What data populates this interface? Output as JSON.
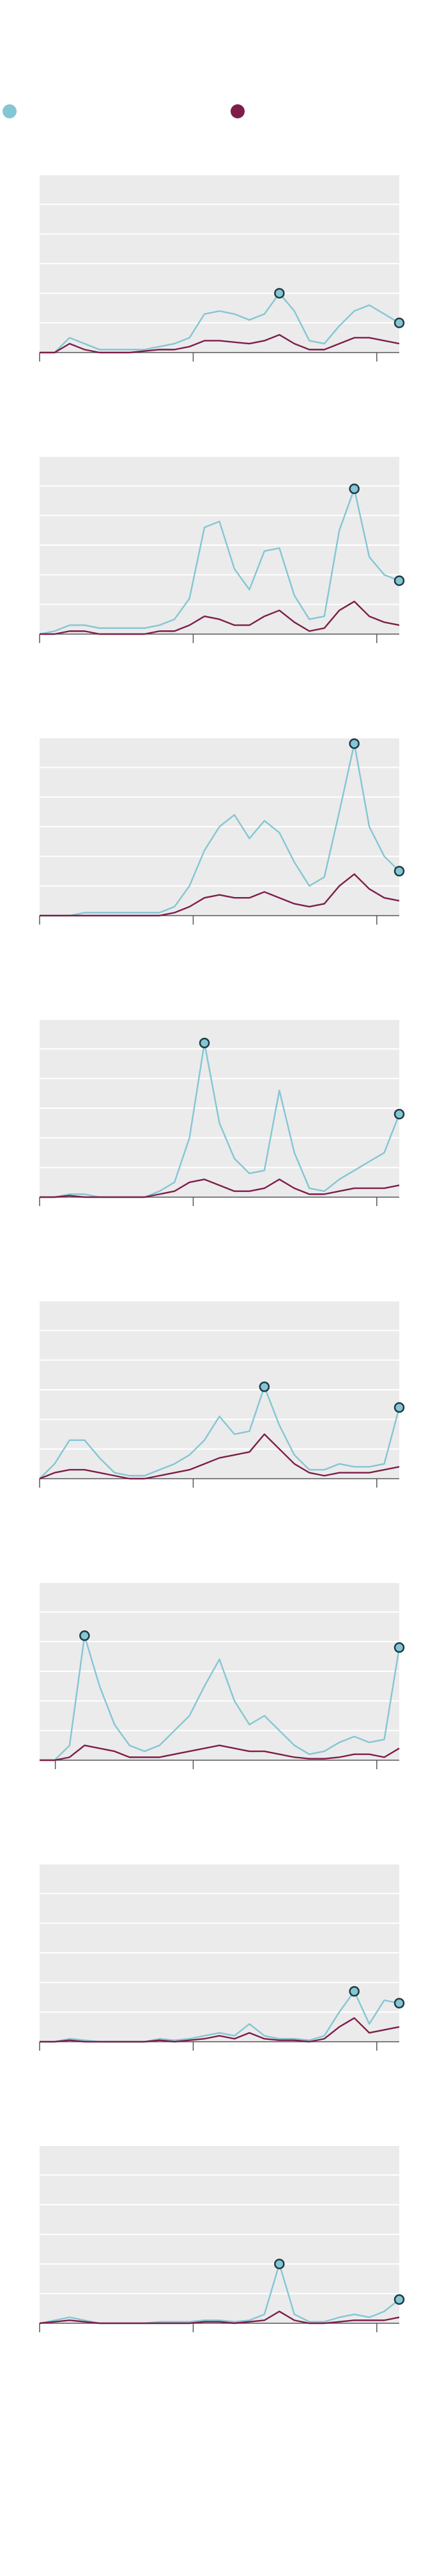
{
  "chart_data": [
    {
      "type": "line",
      "x": [
        0,
        1,
        2,
        3,
        4,
        5,
        6,
        7,
        8,
        9,
        10,
        11,
        12,
        13,
        14,
        15,
        16,
        17,
        18,
        19,
        20,
        21,
        22,
        23,
        24
      ],
      "xlim": [
        0,
        24
      ],
      "xticks": [
        0,
        10.25,
        22.5
      ],
      "ylim": [
        0,
        6
      ],
      "yticks": [
        0,
        1,
        2,
        3,
        4,
        5,
        6
      ],
      "grid": true,
      "series": [
        {
          "color": "#84c6d4",
          "values": [
            0,
            0,
            0.5,
            0.3,
            0.1,
            0.1,
            0.1,
            0.1,
            0.2,
            0.3,
            0.5,
            1.3,
            1.4,
            1.3,
            1.1,
            1.3,
            2.0,
            1.4,
            0.4,
            0.3,
            0.9,
            1.4,
            1.6,
            1.3,
            1.0
          ]
        },
        {
          "color": "#7d1e4a",
          "values": [
            0,
            0,
            0.3,
            0.1,
            0,
            0,
            0,
            0.05,
            0.1,
            0.1,
            0.2,
            0.4,
            0.4,
            0.35,
            0.3,
            0.4,
            0.6,
            0.3,
            0.1,
            0.1,
            0.3,
            0.5,
            0.5,
            0.4,
            0.3
          ]
        }
      ]
    },
    {
      "type": "line",
      "x": [
        0,
        1,
        2,
        3,
        4,
        5,
        6,
        7,
        8,
        9,
        10,
        11,
        12,
        13,
        14,
        15,
        16,
        17,
        18,
        19,
        20,
        21,
        22,
        23,
        24
      ],
      "xlim": [
        0,
        24
      ],
      "xticks": [
        0,
        10.25,
        22.5
      ],
      "ylim": [
        0,
        6
      ],
      "yticks": [
        0,
        1,
        2,
        3,
        4,
        5,
        6
      ],
      "grid": true,
      "series": [
        {
          "color": "#84c6d4",
          "values": [
            0,
            0.1,
            0.3,
            0.3,
            0.2,
            0.2,
            0.2,
            0.2,
            0.3,
            0.5,
            1.2,
            3.6,
            3.8,
            2.2,
            1.5,
            2.8,
            2.9,
            1.3,
            0.5,
            0.6,
            3.5,
            4.9,
            2.6,
            2.0,
            1.8
          ]
        },
        {
          "color": "#7d1e4a",
          "values": [
            0,
            0,
            0.1,
            0.1,
            0,
            0,
            0,
            0,
            0.1,
            0.1,
            0.3,
            0.6,
            0.5,
            0.3,
            0.3,
            0.6,
            0.8,
            0.4,
            0.1,
            0.2,
            0.8,
            1.1,
            0.6,
            0.4,
            0.3
          ]
        }
      ]
    },
    {
      "type": "line",
      "x": [
        0,
        1,
        2,
        3,
        4,
        5,
        6,
        7,
        8,
        9,
        10,
        11,
        12,
        13,
        14,
        15,
        16,
        17,
        18,
        19,
        20,
        21,
        22,
        23,
        24
      ],
      "xlim": [
        0,
        24
      ],
      "xticks": [
        0,
        10.25,
        22.5
      ],
      "ylim": [
        0,
        6
      ],
      "yticks": [
        0,
        1,
        2,
        3,
        4,
        5,
        6
      ],
      "grid": true,
      "series": [
        {
          "color": "#84c6d4",
          "values": [
            0,
            0,
            0,
            0.1,
            0.1,
            0.1,
            0.1,
            0.1,
            0.1,
            0.3,
            1.0,
            2.2,
            3.0,
            3.4,
            2.6,
            3.2,
            2.8,
            1.8,
            1.0,
            1.3,
            3.5,
            5.8,
            3.0,
            2.0,
            1.5
          ]
        },
        {
          "color": "#7d1e4a",
          "values": [
            0,
            0,
            0,
            0,
            0,
            0,
            0,
            0,
            0,
            0.1,
            0.3,
            0.6,
            0.7,
            0.6,
            0.6,
            0.8,
            0.6,
            0.4,
            0.3,
            0.4,
            1.0,
            1.4,
            0.9,
            0.6,
            0.5
          ]
        }
      ]
    },
    {
      "type": "line",
      "x": [
        0,
        1,
        2,
        3,
        4,
        5,
        6,
        7,
        8,
        9,
        10,
        11,
        12,
        13,
        14,
        15,
        16,
        17,
        18,
        19,
        20,
        21,
        22,
        23,
        24
      ],
      "xlim": [
        0,
        24
      ],
      "xticks": [
        0,
        10.25,
        22.5
      ],
      "ylim": [
        0,
        6
      ],
      "yticks": [
        0,
        1,
        2,
        3,
        4,
        5,
        6
      ],
      "grid": true,
      "series": [
        {
          "color": "#84c6d4",
          "values": [
            0,
            0,
            0.1,
            0.1,
            0,
            0,
            0,
            0,
            0.2,
            0.5,
            2.0,
            5.2,
            2.5,
            1.3,
            0.8,
            0.9,
            3.6,
            1.5,
            0.3,
            0.2,
            0.6,
            0.9,
            1.2,
            1.5,
            2.8
          ]
        },
        {
          "color": "#7d1e4a",
          "values": [
            0,
            0,
            0.05,
            0,
            0,
            0,
            0,
            0,
            0.1,
            0.2,
            0.5,
            0.6,
            0.4,
            0.2,
            0.2,
            0.3,
            0.6,
            0.3,
            0.1,
            0.1,
            0.2,
            0.3,
            0.3,
            0.3,
            0.4
          ]
        }
      ]
    },
    {
      "type": "line",
      "x": [
        0,
        1,
        2,
        3,
        4,
        5,
        6,
        7,
        8,
        9,
        10,
        11,
        12,
        13,
        14,
        15,
        16,
        17,
        18,
        19,
        20,
        21,
        22,
        23,
        24
      ],
      "xlim": [
        0,
        24
      ],
      "xticks": [
        0,
        10.25,
        22.5
      ],
      "ylim": [
        0,
        6
      ],
      "yticks": [
        0,
        1,
        2,
        3,
        4,
        5,
        6
      ],
      "grid": true,
      "series": [
        {
          "color": "#84c6d4",
          "values": [
            0,
            0.5,
            1.3,
            1.3,
            0.7,
            0.2,
            0.1,
            0.1,
            0.3,
            0.5,
            0.8,
            1.3,
            2.1,
            1.5,
            1.6,
            3.1,
            1.8,
            0.8,
            0.3,
            0.3,
            0.5,
            0.4,
            0.4,
            0.5,
            2.4
          ]
        },
        {
          "color": "#7d1e4a",
          "values": [
            0,
            0.2,
            0.3,
            0.3,
            0.2,
            0.1,
            0,
            0,
            0.1,
            0.2,
            0.3,
            0.5,
            0.7,
            0.8,
            0.9,
            1.5,
            1.0,
            0.5,
            0.2,
            0.1,
            0.2,
            0.2,
            0.2,
            0.3,
            0.4
          ]
        }
      ]
    },
    {
      "type": "line",
      "x": [
        0,
        1,
        2,
        3,
        4,
        5,
        6,
        7,
        8,
        9,
        10,
        11,
        12,
        13,
        14,
        15,
        16,
        17,
        18,
        19,
        20,
        21,
        22,
        23,
        24
      ],
      "xlim": [
        0,
        24
      ],
      "xticks": [
        1.05,
        10.25,
        22.5
      ],
      "ylim": [
        0,
        6
      ],
      "yticks": [
        0,
        1,
        2,
        3,
        4,
        5,
        6
      ],
      "grid": true,
      "series": [
        {
          "color": "#84c6d4",
          "values": [
            0,
            0,
            0.5,
            4.2,
            2.5,
            1.2,
            0.5,
            0.3,
            0.5,
            1.0,
            1.5,
            2.5,
            3.4,
            2.0,
            1.2,
            1.5,
            1.0,
            0.5,
            0.2,
            0.3,
            0.6,
            0.8,
            0.6,
            0.7,
            3.8
          ]
        },
        {
          "color": "#7d1e4a",
          "values": [
            0,
            0,
            0.1,
            0.5,
            0.4,
            0.3,
            0.1,
            0.1,
            0.1,
            0.2,
            0.3,
            0.4,
            0.5,
            0.4,
            0.3,
            0.3,
            0.2,
            0.1,
            0.05,
            0.05,
            0.1,
            0.2,
            0.2,
            0.1,
            0.4
          ]
        }
      ]
    },
    {
      "type": "line",
      "x": [
        0,
        1,
        2,
        3,
        4,
        5,
        6,
        7,
        8,
        9,
        10,
        11,
        12,
        13,
        14,
        15,
        16,
        17,
        18,
        19,
        20,
        21,
        22,
        23,
        24
      ],
      "xlim": [
        0,
        24
      ],
      "xticks": [
        0,
        10.25,
        22.5
      ],
      "ylim": [
        0,
        6
      ],
      "yticks": [
        0,
        1,
        2,
        3,
        4,
        5,
        6
      ],
      "grid": true,
      "series": [
        {
          "color": "#84c6d4",
          "values": [
            0,
            0,
            0.1,
            0.05,
            0,
            0,
            0,
            0,
            0.1,
            0.05,
            0.1,
            0.2,
            0.3,
            0.2,
            0.6,
            0.2,
            0.1,
            0.1,
            0.05,
            0.2,
            1.0,
            1.7,
            0.6,
            1.4,
            1.3
          ]
        },
        {
          "color": "#7d1e4a",
          "values": [
            0,
            0,
            0.05,
            0,
            0,
            0,
            0,
            0,
            0.05,
            0,
            0.05,
            0.1,
            0.2,
            0.1,
            0.3,
            0.1,
            0.05,
            0.05,
            0,
            0.1,
            0.5,
            0.8,
            0.3,
            0.4,
            0.5
          ]
        }
      ]
    },
    {
      "type": "line",
      "x": [
        0,
        1,
        2,
        3,
        4,
        5,
        6,
        7,
        8,
        9,
        10,
        11,
        12,
        13,
        14,
        15,
        16,
        17,
        18,
        19,
        20,
        21,
        22,
        23,
        24
      ],
      "xlim": [
        0,
        24
      ],
      "xticks": [
        0,
        10.25,
        22.5
      ],
      "ylim": [
        0,
        6
      ],
      "yticks": [
        0,
        1,
        2,
        3,
        4,
        5,
        6
      ],
      "grid": true,
      "series": [
        {
          "color": "#84c6d4",
          "values": [
            0,
            0.1,
            0.2,
            0.1,
            0,
            0,
            0,
            0,
            0.05,
            0.05,
            0.05,
            0.1,
            0.1,
            0.05,
            0.1,
            0.3,
            2.0,
            0.3,
            0.05,
            0.05,
            0.2,
            0.3,
            0.2,
            0.4,
            0.8
          ]
        },
        {
          "color": "#7d1e4a",
          "values": [
            0,
            0.05,
            0.1,
            0.05,
            0,
            0,
            0,
            0,
            0,
            0,
            0,
            0.05,
            0.05,
            0,
            0.05,
            0.1,
            0.4,
            0.1,
            0,
            0,
            0.05,
            0.1,
            0.1,
            0.1,
            0.2
          ]
        }
      ]
    }
  ]
}
